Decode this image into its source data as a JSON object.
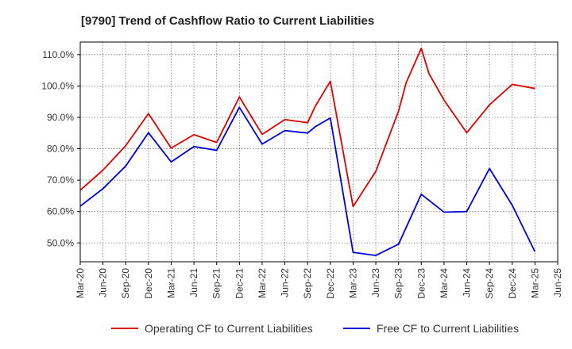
{
  "chart_data": {
    "type": "line",
    "title": "[9790]  Trend of Cashflow Ratio to Current Liabilities",
    "xlabel": "",
    "ylabel": "",
    "x_tick_labels": [
      "Mar-20",
      "Jun-20",
      "Sep-20",
      "Dec-20",
      "Mar-21",
      "Jun-21",
      "Sep-21",
      "Dec-21",
      "Mar-22",
      "Jun-22",
      "Sep-22",
      "Dec-22",
      "Mar-23",
      "Jun-23",
      "Sep-23",
      "Dec-23",
      "Mar-24",
      "Jun-24",
      "Sep-24",
      "Dec-24",
      "Mar-25",
      "Jun-25"
    ],
    "y_ticks": [
      50,
      60,
      70,
      80,
      90,
      100,
      110
    ],
    "y_tick_labels": [
      "50.0%",
      "60.0%",
      "70.0%",
      "80.0%",
      "90.0%",
      "100.0%",
      "110.0%"
    ],
    "ylim": [
      44,
      114
    ],
    "grid": true,
    "legend_position": "bottom",
    "series": [
      {
        "name": "Operating CF to Current Liabilities",
        "color": "#dd0000",
        "points": [
          [
            "Mar-20",
            66.8
          ],
          [
            "Jun-20",
            73.2
          ],
          [
            "Sep-20",
            81.0
          ],
          [
            "Dec-20",
            91.2
          ],
          [
            "Mar-21",
            80.2
          ],
          [
            "Jun-21",
            84.5
          ],
          [
            "Sep-21",
            82.0
          ],
          [
            "Dec-21",
            96.5
          ],
          [
            "Mar-22",
            84.6
          ],
          [
            "Jun-22",
            89.3
          ],
          [
            "Sep-22",
            88.3
          ],
          [
            "Oct-22",
            93.5
          ],
          [
            "Dec-22",
            101.5
          ],
          [
            "Mar-23",
            61.6
          ],
          [
            "Jun-23",
            72.8
          ],
          [
            "Sep-23",
            92.0
          ],
          [
            "Oct-23",
            101.0
          ],
          [
            "Dec-23",
            112.0
          ],
          [
            "Jan-24",
            104.0
          ],
          [
            "Mar-24",
            95.5
          ],
          [
            "Jun-24",
            85.1
          ],
          [
            "Sep-24",
            94.0
          ],
          [
            "Dec-24",
            100.5
          ],
          [
            "Mar-25",
            99.2
          ]
        ]
      },
      {
        "name": "Free CF to Current Liabilities",
        "color": "#0000dd",
        "points": [
          [
            "Mar-20",
            61.7
          ],
          [
            "Jun-20",
            67.3
          ],
          [
            "Sep-20",
            74.5
          ],
          [
            "Dec-20",
            85.1
          ],
          [
            "Mar-21",
            75.8
          ],
          [
            "Jun-21",
            80.7
          ],
          [
            "Sep-21",
            79.5
          ],
          [
            "Dec-21",
            93.2
          ],
          [
            "Mar-22",
            81.5
          ],
          [
            "Jun-22",
            85.8
          ],
          [
            "Sep-22",
            85.0
          ],
          [
            "Oct-22",
            87.0
          ],
          [
            "Dec-22",
            89.8
          ],
          [
            "Mar-23",
            47.0
          ],
          [
            "Jun-23",
            46.0
          ],
          [
            "Sep-23",
            49.6
          ],
          [
            "Dec-23",
            65.5
          ],
          [
            "Mar-24",
            59.8
          ],
          [
            "Jun-24",
            60.0
          ],
          [
            "Sep-24",
            73.7
          ],
          [
            "Dec-24",
            62.0
          ],
          [
            "Mar-25",
            47.2
          ]
        ]
      }
    ]
  }
}
